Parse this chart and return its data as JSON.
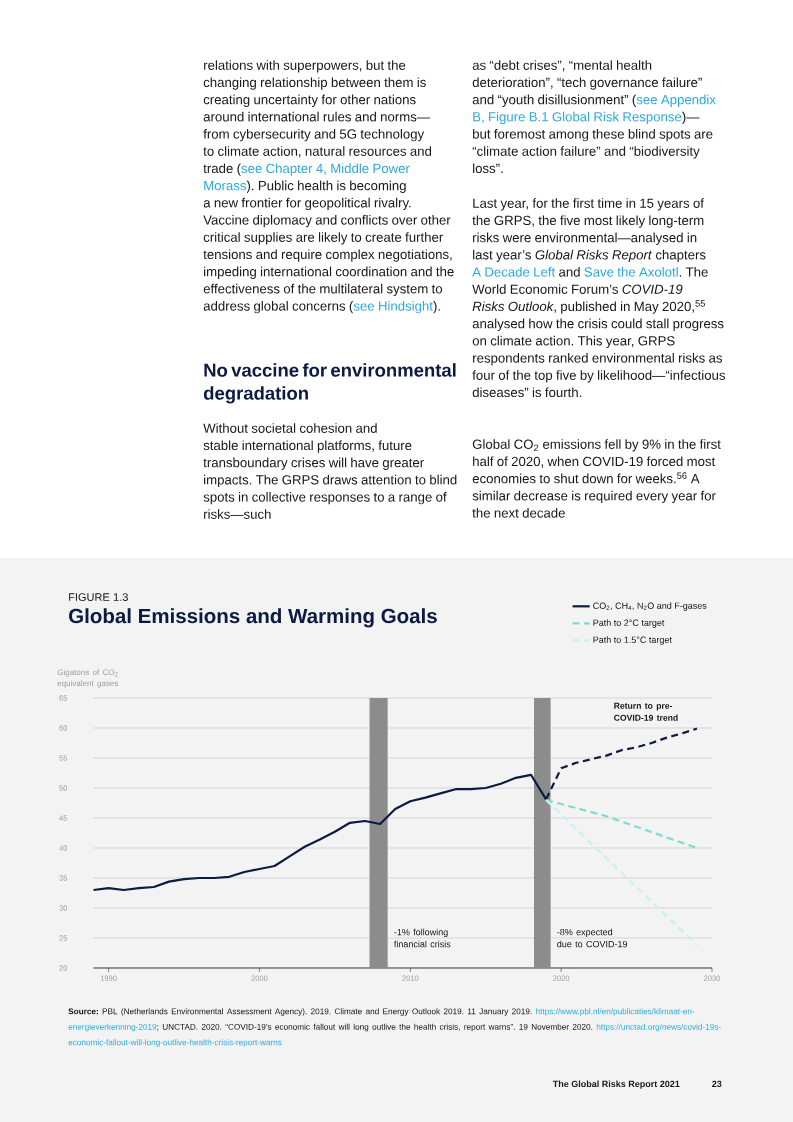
{
  "chart_data": {
    "type": "line",
    "title": "Global Emissions and Warming Goals",
    "ylabel": "Gigatons of CO$_{2}$ equivalent gases",
    "x": [
      1989,
      1990,
      1991,
      1992,
      1993,
      1994,
      1995,
      1996,
      1997,
      1998,
      1999,
      2000,
      2001,
      2002,
      2003,
      2004,
      2005,
      2006,
      2007,
      2008,
      2009,
      2010,
      2011,
      2012,
      2013,
      2014,
      2015,
      2016,
      2017,
      2018,
      2019
    ],
    "series": [
      {
        "name": "CO$_{2}$, CH$_{4}$, N$_{2}$O and F-gases",
        "color": "#0d1b42",
        "line_style": "solid",
        "values": [
          33.0,
          33.3,
          33.0,
          33.3,
          33.5,
          34.4,
          34.8,
          35.0,
          35.0,
          35.2,
          36.0,
          36.5,
          37.0,
          38.6,
          40.2,
          41.4,
          42.7,
          44.2,
          44.5,
          44.0,
          46.5,
          47.8,
          48.4,
          49.1,
          49.8,
          49.8,
          50.0,
          50.7,
          51.7,
          52.2,
          48.1
        ]
      },
      {
        "color": "#0d1b42",
        "line_style": "dashed",
        "x": [
          2019,
          2020,
          2021,
          2022,
          2023,
          2024,
          2025,
          2026,
          2027,
          2028,
          2029
        ],
        "values": [
          48.1,
          53.3,
          54.2,
          54.8,
          55.4,
          56.3,
          56.8,
          57.5,
          58.4,
          59.1,
          59.9
        ]
      },
      {
        "name": "Path to 2°C target",
        "color": "#7ddbd0",
        "line_style": "dashed",
        "x": [
          2019,
          2023,
          2029
        ],
        "values": [
          48.0,
          45.3,
          40.0
        ]
      },
      {
        "name": "Path to 1.5°C target",
        "color": "#c9f1ec",
        "line_style": "dashed",
        "x": [
          2019,
          2029
        ],
        "values": [
          48.0,
          23.8
        ]
      }
    ],
    "xlim": [
      1989,
      2030
    ],
    "xticks": [
      1990,
      2000,
      2010,
      2020,
      2030
    ],
    "ylim": [
      20,
      65
    ],
    "yticks": [
      20,
      25,
      30,
      35,
      40,
      45,
      50,
      55,
      60,
      65
    ],
    "grid": "y",
    "legend": "top right",
    "marker": "none",
    "bands": [
      {
        "axis": "x",
        "from": 2007.3,
        "to": 2008.5,
        "label": "-1% following financial crisis",
        "color": "#8c8c8c"
      },
      {
        "axis": "x",
        "from": 2018.2,
        "to": 2019.3,
        "label": "-8% expected due to COVID-19",
        "color": "#8c8c8c"
      }
    ],
    "annotations": [
      "FIGURE 1.3",
      {
        "text": "Return to pre-COVID-19 trend",
        "x": 2029,
        "y": 60
      },
      "**Source:** PBL (Netherlands Environmental Assessment Agency). 2019. Climate and Energy Outlook 2019. 11 January 2019. ",
      "https://www.pbl.nl/en/publicaties/klimaat-en-energieverkenning-2019",
      "; UNCTAD. 2020. “COVID-19’s economic fallout will long outlive the health crisis, report warns”. 19 November 2020. ",
      "https://unctad.org/news/covid-19s-economic-fallout-will-long-outlive-health-crisis-report-warns",
      "The Global Risks Report 2021",
      "23",
      "relations with superpowers, but the changing relationship between them is creating uncertainty for other nations around international rules and norms—from cybersecurity and 5G technology to climate action, natural resources and trade (",
      "see Chapter 4, Middle Power Morass",
      "). Public health is becoming a new frontier for geopolitical rivalry. Vaccine diplomacy and conflicts over other critical supplies are likely to create further tensions and require complex negotiations, impeding international coordination and the effectiveness of the multilateral system to address global concerns (",
      "see Hindsight",
      ").",
      "No vaccine for environmental degradation",
      "Without societal cohesion and stable international platforms, future transboundary crises will have greater impacts. The GRPS draws attention to blind spots in collective responses to a range of risks—such",
      "as “debt crises”, “mental health deterioration”, “tech governance failure” and “youth disillusionment” (",
      "see Appendix B, Figure B.1 Global Risk Response",
      ")—but foremost among these blind spots are “climate action failure” and “biodiversity loss”.",
      "Last year, for the first time in 15 years of the GRPS, the five most likely long-term risks were environmental—analysed in last year’s *Global Risks Report* chapters ",
      "A Decade Left",
      " and ",
      "Save the Axolotl",
      ". The World Economic Forum’s *COVID-19 Risks Outlook*, published in May 2020,$^{55}$ analysed how the crisis could stall progress on climate action. This year, GRPS respondents ranked environmental risks as four of the top five by likelihood—“infectious diseases” is fourth.",
      "Global CO$_{2}$ emissions fell by 9% in the first half of 2020, when COVID-19 forced most economies to shut down for weeks.$^{56}$ A similar decrease is required every year for the next decade"
    ]
  }
}
